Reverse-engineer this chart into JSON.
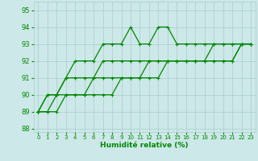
{
  "xlabel": "Humidité relative (%)",
  "ylabel": "",
  "xlim": [
    -0.5,
    23.5
  ],
  "ylim": [
    87.8,
    95.5
  ],
  "yticks": [
    88,
    89,
    90,
    91,
    92,
    93,
    94,
    95
  ],
  "xticks": [
    0,
    1,
    2,
    3,
    4,
    5,
    6,
    7,
    8,
    9,
    10,
    11,
    12,
    13,
    14,
    15,
    16,
    17,
    18,
    19,
    20,
    21,
    22,
    23
  ],
  "bg_color": "#cce8e8",
  "grid_color": "#aacccc",
  "line_color": "#008800",
  "line_width": 0.9,
  "marker": "+",
  "marker_size": 3,
  "marker_edge_width": 0.8,
  "lines": [
    [
      89,
      90,
      90,
      91,
      92,
      92,
      92,
      93,
      93,
      93,
      94,
      93,
      93,
      94,
      94,
      93,
      93,
      93,
      93,
      93,
      93,
      93,
      93,
      93
    ],
    [
      89,
      90,
      90,
      91,
      91,
      91,
      91,
      92,
      92,
      92,
      92,
      92,
      92,
      92,
      92,
      92,
      92,
      92,
      92,
      93,
      93,
      93,
      93,
      93
    ],
    [
      89,
      89,
      90,
      90,
      90,
      90,
      91,
      91,
      91,
      91,
      91,
      91,
      92,
      92,
      92,
      92,
      92,
      92,
      92,
      92,
      92,
      92,
      93,
      93
    ],
    [
      89,
      89,
      89,
      90,
      90,
      90,
      90,
      90,
      90,
      91,
      91,
      91,
      91,
      91,
      92,
      92,
      92,
      92,
      92,
      92,
      92,
      92,
      93,
      93
    ]
  ]
}
